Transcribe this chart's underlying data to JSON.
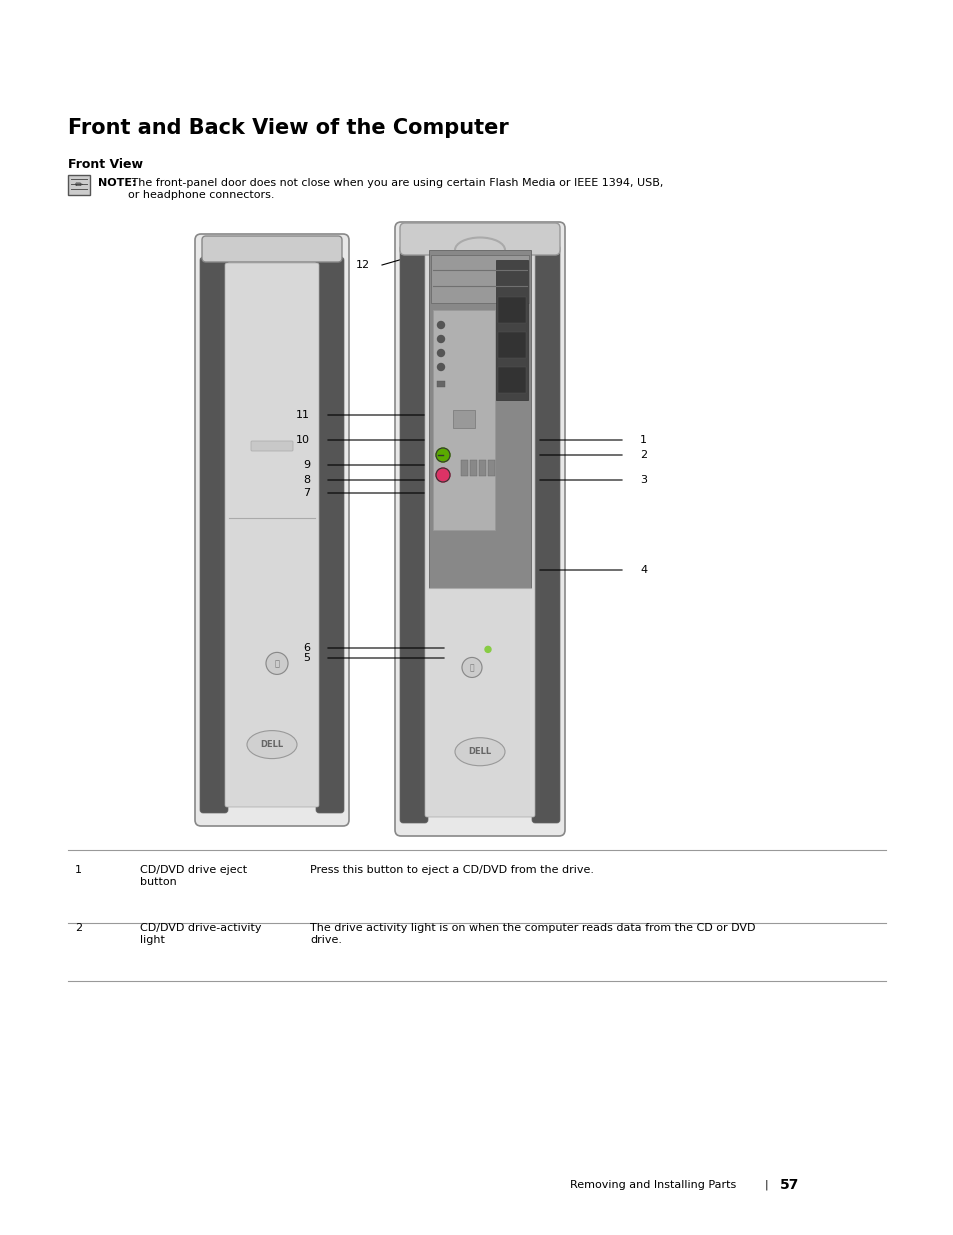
{
  "title": "Front and Back View of the Computer",
  "subtitle": "Front View",
  "note_bold": "NOTE:",
  "note_text": " The front-panel door does not close when you are using certain Flash Media or IEEE 1394, USB,\nor headphone connectors.",
  "table_rows": [
    {
      "num": "1",
      "label": "CD/DVD drive eject\nbutton",
      "desc": "Press this button to eject a CD/DVD from the drive."
    },
    {
      "num": "2",
      "label": "CD/DVD drive-activity\nlight",
      "desc": "The drive activity light is on when the computer reads data from the CD or DVD\ndrive."
    }
  ],
  "footer_left": "Removing and Installing Parts",
  "footer_sep": "|",
  "footer_page": "57",
  "bg_color": "#ffffff",
  "text_color": "#000000",
  "title_fontsize": 15,
  "subtitle_fontsize": 9,
  "note_fontsize": 8.0,
  "table_fontsize": 8.0,
  "footer_fontsize": 8.0,
  "callout_fontsize": 8.0
}
